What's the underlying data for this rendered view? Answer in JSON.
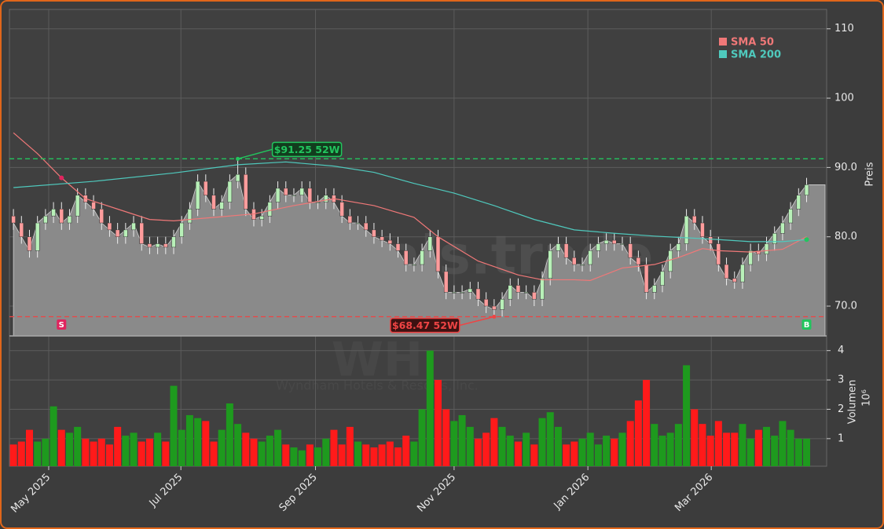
{
  "chart_data": {
    "type": "candlestick",
    "symbol": "WH",
    "company": "Wyndham Hotels & Resorts, Inc.",
    "watermark": "forexsignals.trade",
    "xlim": [
      -0.5,
      101.5
    ],
    "xticks": [
      {
        "value": 4.4,
        "label": "May 2025"
      },
      {
        "value": 20.9,
        "label": "Jul 2025"
      },
      {
        "value": 37.7,
        "label": "Sep 2025"
      },
      {
        "value": 55.0,
        "label": "Nov 2025"
      },
      {
        "value": 71.7,
        "label": "Jan 2026"
      },
      {
        "value": 87.1,
        "label": "Mar 2026"
      }
    ],
    "ylim": [
      65.7,
      112.8
    ],
    "yticks": [
      {
        "value": 70,
        "label": "70.0"
      },
      {
        "value": 80,
        "label": "80.0"
      },
      {
        "value": 90,
        "label": "90.0"
      },
      100,
      110
    ],
    "y_label": "Preis",
    "grid": true,
    "legend": "upper right",
    "up_color": "#b8f0b8",
    "down_color": "#ff9c9c",
    "area_color": "#8a8a8a",
    "candles": {
      "open": [
        83,
        82,
        80,
        78,
        82,
        83,
        84,
        82,
        83,
        86,
        85,
        84,
        82,
        81,
        80,
        81,
        82,
        79,
        78.5,
        79,
        78.5,
        80,
        82,
        84,
        88,
        86,
        84,
        85,
        88,
        89,
        84,
        82.5,
        83,
        85,
        87,
        86,
        86,
        87,
        85,
        85,
        86,
        85,
        83,
        82,
        82,
        81,
        80,
        79.5,
        79,
        78,
        76,
        76,
        78,
        80,
        75,
        72,
        72,
        72,
        72.5,
        71,
        70,
        69.5,
        71,
        73,
        72,
        72,
        71,
        74,
        78,
        79,
        77,
        76,
        76,
        78,
        79,
        79.5,
        79,
        79,
        77,
        76,
        72,
        73,
        75,
        78,
        79,
        83,
        82,
        80,
        79,
        76,
        74,
        73.5,
        76,
        78,
        77.5,
        79,
        80.5,
        82,
        84,
        86
      ],
      "high": [
        84,
        83,
        81,
        83,
        84,
        85,
        85,
        84,
        87,
        87,
        86,
        85,
        83,
        82,
        82,
        83,
        83,
        80,
        80,
        80,
        81,
        83,
        85,
        89,
        89,
        87,
        86,
        89,
        91.25,
        90,
        85,
        84,
        86,
        88,
        88,
        87,
        88,
        88,
        86,
        87,
        87,
        86,
        84,
        83,
        83,
        82,
        81,
        80.5,
        80,
        79,
        77,
        79,
        81,
        81,
        76,
        73,
        73,
        73.5,
        73.5,
        72,
        71,
        72,
        74,
        74,
        73,
        73,
        75,
        79,
        80,
        80,
        78,
        77,
        79,
        80,
        80.5,
        80.5,
        80,
        80,
        78,
        77,
        74,
        76,
        79,
        80,
        84,
        84,
        83,
        81,
        80,
        77,
        75,
        77,
        79,
        79,
        80,
        81.5,
        83,
        85,
        87,
        88.5
      ],
      "low": [
        81,
        79,
        77,
        77,
        81,
        82,
        81,
        81,
        82,
        84,
        83,
        81,
        80,
        79,
        79,
        80,
        78,
        77.5,
        77.5,
        77.5,
        77.5,
        79,
        81,
        83,
        85,
        83,
        83,
        84,
        87,
        83,
        81.5,
        81.5,
        82,
        84,
        85,
        85,
        85,
        84,
        84,
        84,
        84,
        82,
        81,
        81,
        80,
        79,
        78.5,
        78,
        77,
        75,
        75,
        75,
        77,
        74,
        71,
        71,
        71,
        71,
        70,
        69,
        68.47,
        68.5,
        70,
        71,
        71,
        70,
        70,
        73,
        77,
        76,
        75,
        75,
        75,
        77,
        78,
        78,
        78,
        76,
        75,
        71,
        71,
        72,
        74,
        77,
        78,
        81,
        79,
        78,
        75,
        73,
        72.5,
        72.5,
        75,
        76.5,
        76.5,
        78,
        79.5,
        81,
        83,
        85
      ],
      "close": [
        82,
        80,
        78,
        82,
        83,
        84,
        82,
        83,
        86,
        85,
        84,
        82,
        81,
        80,
        81,
        82,
        79,
        78.5,
        79,
        78.5,
        80,
        82,
        84,
        88,
        86,
        84,
        85,
        88,
        89,
        84,
        82.5,
        83,
        85,
        87,
        86,
        86,
        87,
        85,
        85,
        86,
        85,
        83,
        82,
        82,
        81,
        80,
        79.5,
        79,
        78,
        76,
        76,
        78,
        80,
        75,
        72,
        72,
        72,
        72.5,
        71,
        70,
        69.5,
        71,
        73,
        72,
        72,
        71,
        74,
        78,
        79,
        77,
        76,
        76,
        78,
        79,
        79.5,
        79,
        79,
        77,
        76,
        72,
        73,
        75,
        78,
        79,
        83,
        82,
        80,
        79,
        76,
        74,
        73.5,
        76,
        78,
        77.5,
        79,
        80.5,
        82,
        84,
        86,
        87.5
      ]
    },
    "series": [
      {
        "name": "SMA 50",
        "color": "#f07878",
        "x": [
          0,
          3,
          6,
          9,
          13,
          17,
          20,
          25,
          30,
          35,
          40,
          45,
          50,
          53,
          58,
          63,
          66,
          70,
          72,
          76,
          80,
          83,
          86,
          88,
          92,
          96,
          99
        ],
        "values": [
          95,
          92,
          88.5,
          85.5,
          84,
          82.5,
          82.3,
          82.8,
          83.3,
          84.5,
          85.5,
          84.5,
          82.8,
          80,
          76.5,
          74.5,
          73.8,
          73.8,
          73.7,
          75.5,
          76,
          77,
          78.3,
          78,
          77.8,
          78.2,
          80
        ]
      },
      {
        "name": "SMA 200",
        "color": "#4fc9bd",
        "x": [
          0,
          10,
          20,
          28,
          34,
          40,
          45,
          50,
          55,
          60,
          65,
          70,
          75,
          80,
          85,
          88,
          92,
          96,
          99
        ],
        "values": [
          87.1,
          88,
          89.2,
          90.4,
          90.8,
          90.2,
          89.3,
          87.7,
          86.3,
          84.5,
          82.5,
          81,
          80.5,
          80.1,
          79.8,
          79.6,
          79.3,
          79.3,
          79.6
        ]
      }
    ],
    "annotations": [
      {
        "label": "$91.25 52W",
        "value": 91.25,
        "color": "#22c55e"
      },
      {
        "label": "$68.47 52W",
        "value": 68.47,
        "color": "#ef4444"
      }
    ],
    "signals": [
      {
        "label": "S",
        "x": 6,
        "color": "#e0245e"
      },
      {
        "label": "B",
        "x": 99,
        "color": "#22c55e"
      }
    ],
    "volume": {
      "label": "Volumen",
      "multiplier": "10⁶",
      "ylim": [
        0.06,
        4.5
      ],
      "yticks": [
        1,
        2,
        3,
        4
      ],
      "up_color": "#1e9a1e",
      "down_color": "#ff1a1a",
      "values": [
        0.8,
        0.9,
        1.3,
        0.9,
        1.0,
        2.1,
        1.3,
        1.2,
        1.4,
        1.0,
        0.9,
        1.0,
        0.8,
        1.4,
        1.1,
        1.2,
        0.9,
        1.0,
        1.2,
        0.9,
        2.8,
        1.3,
        1.8,
        1.7,
        1.6,
        0.9,
        1.3,
        2.2,
        1.5,
        1.2,
        1.0,
        0.9,
        1.1,
        1.3,
        0.8,
        0.7,
        0.6,
        0.8,
        0.7,
        1.0,
        1.3,
        0.8,
        1.4,
        0.9,
        0.8,
        0.7,
        0.8,
        0.9,
        0.7,
        1.1,
        0.9,
        2.0,
        4.0,
        3.0,
        2.0,
        1.6,
        1.8,
        1.4,
        1.0,
        1.2,
        1.7,
        1.4,
        1.1,
        0.9,
        1.2,
        0.8,
        1.7,
        1.9,
        1.4,
        0.8,
        0.9,
        1.0,
        1.2,
        0.8,
        1.1,
        1.0,
        1.2,
        1.6,
        2.3,
        3.0,
        1.5,
        1.1,
        1.2,
        1.5,
        3.5,
        2.0,
        1.5,
        1.1,
        1.6,
        1.2,
        1.2,
        1.5,
        1.0,
        1.3,
        1.4,
        1.1,
        1.6,
        1.3,
        1.0,
        1.0
      ]
    }
  }
}
